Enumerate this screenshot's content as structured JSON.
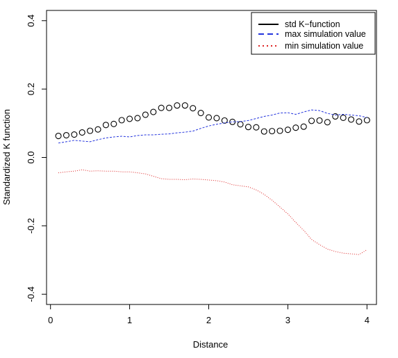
{
  "chart_data": {
    "type": "scatter",
    "title": "",
    "xlabel": "Distance",
    "ylabel": "Standardized K function",
    "xlim": [
      -0.05,
      4.12
    ],
    "ylim": [
      -0.43,
      0.43
    ],
    "x_ticks": [
      0,
      1,
      2,
      3,
      4
    ],
    "x_tick_labels": [
      "0",
      "1",
      "2",
      "3",
      "4"
    ],
    "y_ticks": [
      -0.4,
      -0.2,
      0.0,
      0.2,
      0.4
    ],
    "y_tick_labels": [
      "-0.4",
      "-0.2",
      "0.0",
      "0.2",
      "0.4"
    ],
    "grid": false,
    "legend_position": "top-right",
    "x": [
      0.1,
      0.2,
      0.3,
      0.4,
      0.5,
      0.6,
      0.7,
      0.8,
      0.9,
      1.0,
      1.1,
      1.2,
      1.3,
      1.4,
      1.5,
      1.6,
      1.7,
      1.8,
      1.9,
      2.0,
      2.1,
      2.2,
      2.3,
      2.4,
      2.5,
      2.6,
      2.7,
      2.8,
      2.9,
      3.0,
      3.1,
      3.2,
      3.3,
      3.4,
      3.5,
      3.6,
      3.7,
      3.8,
      3.9,
      4.0
    ],
    "series": [
      {
        "name": "std K−function",
        "style": "points",
        "color": "#000000",
        "values": [
          0.063,
          0.065,
          0.067,
          0.073,
          0.078,
          0.082,
          0.095,
          0.098,
          0.109,
          0.113,
          0.115,
          0.125,
          0.133,
          0.145,
          0.145,
          0.152,
          0.152,
          0.144,
          0.13,
          0.117,
          0.115,
          0.108,
          0.104,
          0.097,
          0.089,
          0.088,
          0.076,
          0.077,
          0.078,
          0.081,
          0.087,
          0.09,
          0.107,
          0.108,
          0.103,
          0.12,
          0.116,
          0.111,
          0.105,
          0.109
        ]
      },
      {
        "name": "max simulation value",
        "style": "dashed",
        "color": "#2233dd",
        "values": [
          0.042,
          0.046,
          0.05,
          0.048,
          0.046,
          0.052,
          0.057,
          0.06,
          0.062,
          0.06,
          0.064,
          0.066,
          0.066,
          0.068,
          0.069,
          0.072,
          0.074,
          0.077,
          0.085,
          0.092,
          0.097,
          0.101,
          0.104,
          0.105,
          0.108,
          0.114,
          0.12,
          0.124,
          0.13,
          0.131,
          0.126,
          0.133,
          0.139,
          0.137,
          0.129,
          0.124,
          0.126,
          0.124,
          0.122,
          0.117
        ]
      },
      {
        "name": "min simulation value",
        "style": "dotted",
        "color": "#dd2222",
        "values": [
          -0.045,
          -0.042,
          -0.04,
          -0.036,
          -0.04,
          -0.039,
          -0.04,
          -0.04,
          -0.042,
          -0.042,
          -0.045,
          -0.048,
          -0.055,
          -0.062,
          -0.064,
          -0.064,
          -0.065,
          -0.063,
          -0.064,
          -0.066,
          -0.068,
          -0.072,
          -0.08,
          -0.083,
          -0.086,
          -0.095,
          -0.108,
          -0.125,
          -0.145,
          -0.165,
          -0.19,
          -0.213,
          -0.24,
          -0.255,
          -0.268,
          -0.275,
          -0.28,
          -0.282,
          -0.284,
          -0.27
        ]
      }
    ]
  }
}
